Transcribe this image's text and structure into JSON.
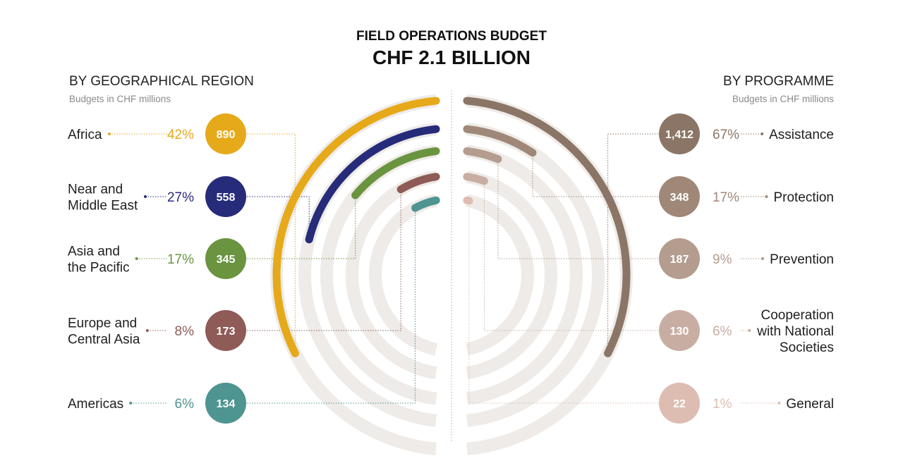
{
  "header": {
    "title": "FIELD OPERATIONS BUDGET",
    "subtitle": "CHF 2.1 BILLION"
  },
  "left": {
    "heading": "BY GEOGRAPHICAL REGION",
    "subheading": "Budgets in CHF millions"
  },
  "right": {
    "heading": "BY PROGRAMME",
    "subheading": "Budgets in CHF millions"
  },
  "chart_data": [
    {
      "type": "radial-bar",
      "title": "BY GEOGRAPHICAL REGION",
      "unit": "Budgets in CHF millions",
      "categories": [
        {
          "label_lines": [
            "Africa"
          ],
          "value": 890,
          "value_label": "890",
          "percent": "42%",
          "color": "#E5A91A"
        },
        {
          "label_lines": [
            "Near and",
            "Middle East"
          ],
          "value": 558,
          "value_label": "558",
          "percent": "27%",
          "color": "#262B7A"
        },
        {
          "label_lines": [
            "Asia and",
            "the Pacific"
          ],
          "value": 345,
          "value_label": "345",
          "percent": "17%",
          "color": "#6A9440"
        },
        {
          "label_lines": [
            "Europe and",
            "Central Asia"
          ],
          "value": 173,
          "value_label": "173",
          "percent": "8%",
          "color": "#8E5B57"
        },
        {
          "label_lines": [
            "Americas"
          ],
          "value": 134,
          "value_label": "134",
          "percent": "6%",
          "color": "#4E9490"
        }
      ]
    },
    {
      "type": "radial-bar",
      "title": "BY PROGRAMME",
      "unit": "Budgets in CHF millions",
      "categories": [
        {
          "label_lines": [
            "Assistance"
          ],
          "value": 1412,
          "value_label": "1,412",
          "percent": "67%",
          "color": "#8B7566"
        },
        {
          "label_lines": [
            "Protection"
          ],
          "value": 348,
          "value_label": "348",
          "percent": "17%",
          "color": "#A08878"
        },
        {
          "label_lines": [
            "Prevention"
          ],
          "value": 187,
          "value_label": "187",
          "percent": "9%",
          "color": "#B49C8E"
        },
        {
          "label_lines": [
            "Cooperation",
            "with National",
            "Societies"
          ],
          "value": 130,
          "value_label": "130",
          "percent": "6%",
          "color": "#C8AEA2"
        },
        {
          "label_lines": [
            "General"
          ],
          "value": 22,
          "value_label": "22",
          "percent": "1%",
          "color": "#DDBDB1"
        }
      ]
    }
  ]
}
